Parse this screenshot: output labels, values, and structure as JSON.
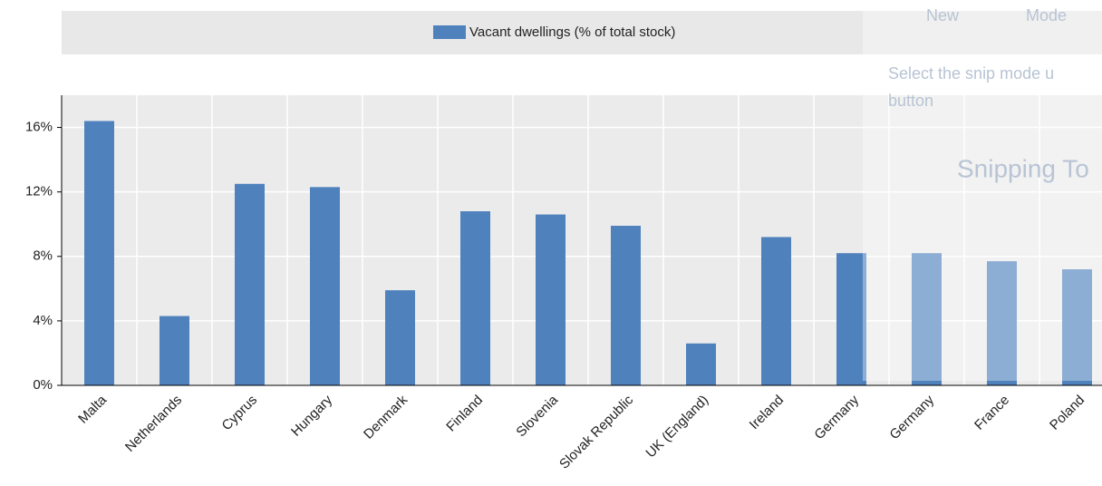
{
  "chart_data": {
    "type": "bar",
    "legend": "Vacant dwellings (% of total stock)",
    "categories": [
      "Malta",
      "Netherlands",
      "Cyprus",
      "Hungary",
      "Denmark",
      "Finland",
      "Slovenia",
      "Slovak Republic",
      "UK (England)",
      "Ireland",
      "Germany",
      "Germany",
      "France",
      "Poland"
    ],
    "values": [
      16.4,
      4.3,
      12.5,
      12.3,
      5.9,
      10.8,
      10.6,
      9.9,
      2.6,
      9.2,
      8.2,
      8.2,
      7.7,
      7.2
    ],
    "color": "#4f81bd",
    "ylim": [
      0,
      18
    ],
    "yticks": [
      {
        "value": 0,
        "label": "0%"
      },
      {
        "value": 4,
        "label": "4%"
      },
      {
        "value": 8,
        "label": "8%"
      },
      {
        "value": 12,
        "label": "12%"
      },
      {
        "value": 16,
        "label": "16%"
      }
    ],
    "grid": true
  },
  "overlay": {
    "new": "New",
    "mode": "Mode",
    "hint": "Select the snip mode u",
    "hint2": "button",
    "app": "Snipping To"
  }
}
